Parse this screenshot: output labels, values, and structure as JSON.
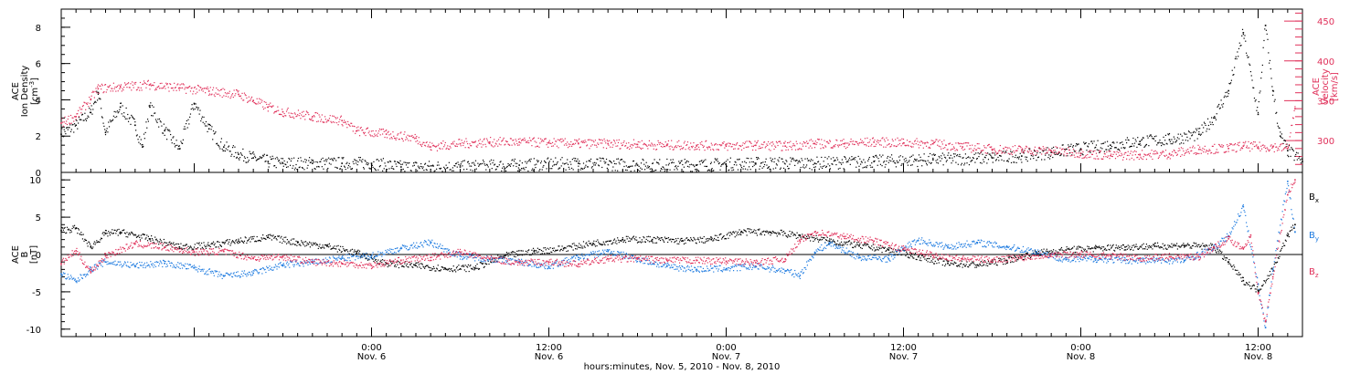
{
  "chart_data": [
    {
      "type": "scatter",
      "panel": "ion-density-velocity",
      "ylabel_lines": [
        "ACE",
        "Ion Density",
        "[cm",
        "-3",
        "]"
      ],
      "ylim": [
        0,
        9
      ],
      "yticks": [
        "0",
        "2",
        "4",
        "6",
        "8"
      ],
      "ytick_values": [
        0,
        2,
        4,
        6,
        8
      ],
      "y2label_lines": [
        "ACE",
        "Velocity",
        "[km/s]"
      ],
      "y2lim": [
        260,
        465
      ],
      "y2ticks": [
        "300",
        "350",
        "400",
        "450"
      ],
      "y2tick_values": [
        300,
        350,
        400,
        450
      ],
      "xlim": [
        -21,
        63
      ],
      "x_unit": "hours from 0:00 Nov. 6, 2010",
      "series": [
        {
          "key": "density",
          "color": "#000000",
          "points": [
            [
              -21,
              2.1
            ],
            [
              -20,
              2.6
            ],
            [
              -19,
              3.3
            ],
            [
              -18.5,
              4.4
            ],
            [
              -18,
              2.2
            ],
            [
              -17,
              3.6
            ],
            [
              -16,
              2.6
            ],
            [
              -15.5,
              1.4
            ],
            [
              -15,
              3.6
            ],
            [
              -14,
              2.3
            ],
            [
              -13,
              1.3
            ],
            [
              -12,
              3.8
            ],
            [
              -11,
              2.4
            ],
            [
              -10,
              1.4
            ],
            [
              -9,
              1.0
            ],
            [
              -8,
              0.8
            ],
            [
              -7,
              0.6
            ],
            [
              -6,
              0.5
            ],
            [
              -4,
              0.5
            ],
            [
              -2,
              0.5
            ],
            [
              0,
              0.5
            ],
            [
              2,
              0.3
            ],
            [
              6,
              0.3
            ],
            [
              10,
              0.4
            ],
            [
              14,
              0.5
            ],
            [
              18,
              0.4
            ],
            [
              22,
              0.4
            ],
            [
              26,
              0.5
            ],
            [
              30,
              0.5
            ],
            [
              34,
              0.6
            ],
            [
              38,
              0.7
            ],
            [
              42,
              0.8
            ],
            [
              44,
              0.9
            ],
            [
              46,
              1.1
            ],
            [
              48,
              1.3
            ],
            [
              50,
              1.5
            ],
            [
              52,
              1.7
            ],
            [
              54,
              1.8
            ],
            [
              56,
              2.1
            ],
            [
              57,
              3.0
            ],
            [
              58,
              4.5
            ],
            [
              59,
              7.7
            ],
            [
              60,
              3.2
            ],
            [
              60.5,
              8.1
            ],
            [
              61,
              4.5
            ],
            [
              61.5,
              2.0
            ],
            [
              62,
              1.2
            ],
            [
              63,
              0.6
            ]
          ]
        },
        {
          "key": "velocity",
          "color": "#e0305a",
          "points": [
            [
              -21,
              322
            ],
            [
              -20,
              330
            ],
            [
              -19,
              352
            ],
            [
              -18.5,
              365
            ],
            [
              -17,
              367
            ],
            [
              -15,
              370
            ],
            [
              -13,
              366
            ],
            [
              -11,
              362
            ],
            [
              -9,
              358
            ],
            [
              -8,
              350
            ],
            [
              -7,
              342
            ],
            [
              -6,
              336
            ],
            [
              -4,
              330
            ],
            [
              -2,
              325
            ],
            [
              -1,
              312
            ],
            [
              1,
              308
            ],
            [
              3,
              303
            ],
            [
              4,
              292
            ],
            [
              6,
              296
            ],
            [
              8,
              298
            ],
            [
              10,
              298
            ],
            [
              12,
              297
            ],
            [
              14,
              296
            ],
            [
              16,
              296
            ],
            [
              18,
              295
            ],
            [
              20,
              294
            ],
            [
              22,
              294
            ],
            [
              24,
              293
            ],
            [
              26,
              294
            ],
            [
              28,
              293
            ],
            [
              30,
              296
            ],
            [
              32,
              296
            ],
            [
              34,
              298
            ],
            [
              36,
              297
            ],
            [
              38,
              296
            ],
            [
              40,
              292
            ],
            [
              42,
              289
            ],
            [
              44,
              288
            ],
            [
              46,
              287
            ],
            [
              48,
              284
            ],
            [
              50,
              281
            ],
            [
              52,
              282
            ],
            [
              54,
              283
            ],
            [
              56,
              289
            ],
            [
              58,
              290
            ],
            [
              59,
              293
            ],
            [
              60,
              292
            ],
            [
              61,
              292
            ],
            [
              62,
              290
            ],
            [
              62.5,
              340
            ]
          ]
        }
      ]
    },
    {
      "type": "scatter",
      "panel": "magnetic-field",
      "ylabel_lines": [
        "ACE",
        "B",
        "[nT]"
      ],
      "ylim": [
        -11,
        11
      ],
      "yticks": [
        "-10",
        "-5",
        "0",
        "5",
        "10"
      ],
      "ytick_values": [
        -10,
        -5,
        0,
        5,
        10
      ],
      "xlim": [
        -21,
        63
      ],
      "x_unit": "hours from 0:00 Nov. 6, 2010",
      "xticks": [
        {
          "time": "0:00",
          "date": "Nov. 6",
          "hours": 0
        },
        {
          "time": "12:00",
          "date": "Nov. 6",
          "hours": 12
        },
        {
          "time": "0:00",
          "date": "Nov. 7",
          "hours": 24
        },
        {
          "time": "12:00",
          "date": "Nov. 7",
          "hours": 36
        },
        {
          "time": "0:00",
          "date": "Nov. 8",
          "hours": 48
        },
        {
          "time": "12:00",
          "date": "Nov. 8",
          "hours": 60
        }
      ],
      "xlabel": "hours:minutes, Nov. 5, 2010 - Nov. 8, 2010",
      "series": [
        {
          "key": "bx",
          "name": "B",
          "subscript": "x",
          "color": "#000000",
          "points": [
            [
              -21,
              3.2
            ],
            [
              -20,
              3.5
            ],
            [
              -19,
              1.0
            ],
            [
              -18,
              2.8
            ],
            [
              -17,
              3.0
            ],
            [
              -15,
              2.1
            ],
            [
              -13,
              1.0
            ],
            [
              -11,
              1.2
            ],
            [
              -9,
              1.8
            ],
            [
              -7,
              2.3
            ],
            [
              -5,
              1.6
            ],
            [
              -3,
              1.1
            ],
            [
              -1,
              0.2
            ],
            [
              1,
              -1.2
            ],
            [
              3,
              -1.5
            ],
            [
              5,
              -1.9
            ],
            [
              7,
              -1.8
            ],
            [
              9,
              -0.2
            ],
            [
              11,
              0.4
            ],
            [
              13,
              0.8
            ],
            [
              15,
              1.5
            ],
            [
              17,
              2.0
            ],
            [
              19,
              2.0
            ],
            [
              21,
              1.8
            ],
            [
              23,
              2.0
            ],
            [
              25,
              3.0
            ],
            [
              27,
              3.0
            ],
            [
              29,
              2.5
            ],
            [
              31,
              1.8
            ],
            [
              33,
              1.2
            ],
            [
              35,
              0.6
            ],
            [
              37,
              -0.3
            ],
            [
              39,
              -1.2
            ],
            [
              41,
              -1.4
            ],
            [
              43,
              -0.8
            ],
            [
              45,
              0.2
            ],
            [
              47,
              0.6
            ],
            [
              49,
              0.8
            ],
            [
              51,
              1.0
            ],
            [
              53,
              1.1
            ],
            [
              55,
              1.2
            ],
            [
              57,
              1.0
            ],
            [
              58,
              -1.0
            ],
            [
              59,
              -3.5
            ],
            [
              60,
              -4.8
            ],
            [
              61,
              -2.0
            ],
            [
              62,
              2.5
            ],
            [
              62.5,
              4.0
            ]
          ]
        },
        {
          "key": "by",
          "name": "B",
          "subscript": "y",
          "color": "#1e7be0",
          "points": [
            [
              -21,
              -2.6
            ],
            [
              -20,
              -3.6
            ],
            [
              -19,
              -2.0
            ],
            [
              -18,
              -1.0
            ],
            [
              -16,
              -1.5
            ],
            [
              -14,
              -1.2
            ],
            [
              -12,
              -1.8
            ],
            [
              -10,
              -2.9
            ],
            [
              -8,
              -2.5
            ],
            [
              -6,
              -1.4
            ],
            [
              -4,
              -1.1
            ],
            [
              -2,
              -0.5
            ],
            [
              0,
              -0.2
            ],
            [
              2,
              0.8
            ],
            [
              4,
              1.6
            ],
            [
              6,
              -0.2
            ],
            [
              8,
              -0.6
            ],
            [
              10,
              -1.0
            ],
            [
              12,
              -1.6
            ],
            [
              14,
              -0.4
            ],
            [
              16,
              0.4
            ],
            [
              18,
              -0.6
            ],
            [
              20,
              -1.6
            ],
            [
              22,
              -2.0
            ],
            [
              24,
              -1.9
            ],
            [
              26,
              -1.6
            ],
            [
              28,
              -2.2
            ],
            [
              29,
              -2.8
            ],
            [
              30,
              0.3
            ],
            [
              31,
              1.5
            ],
            [
              33,
              -0.4
            ],
            [
              35,
              -0.6
            ],
            [
              36,
              0.8
            ],
            [
              37,
              1.9
            ],
            [
              39,
              1.0
            ],
            [
              41,
              1.6
            ],
            [
              43,
              1.0
            ],
            [
              45,
              0.4
            ],
            [
              47,
              -0.7
            ],
            [
              49,
              -0.6
            ],
            [
              51,
              -0.8
            ],
            [
              53,
              -0.8
            ],
            [
              55,
              -0.8
            ],
            [
              57,
              0.8
            ],
            [
              58,
              2.5
            ],
            [
              59,
              6.4
            ],
            [
              60,
              -4.0
            ],
            [
              60.5,
              -9.8
            ],
            [
              61,
              -2.0
            ],
            [
              62,
              9.8
            ],
            [
              62.5,
              3.0
            ]
          ]
        },
        {
          "key": "bz",
          "name": "B",
          "subscript": "z",
          "color": "#e0305a",
          "points": [
            [
              -21,
              -1.2
            ],
            [
              -20,
              0.5
            ],
            [
              -19,
              -2.3
            ],
            [
              -18,
              -0.2
            ],
            [
              -16,
              1.4
            ],
            [
              -14,
              1.0
            ],
            [
              -12,
              0.3
            ],
            [
              -10,
              0.4
            ],
            [
              -8,
              -0.5
            ],
            [
              -6,
              -0.3
            ],
            [
              -4,
              -1.0
            ],
            [
              -2,
              -1.2
            ],
            [
              0,
              -1.5
            ],
            [
              2,
              -0.8
            ],
            [
              4,
              -0.4
            ],
            [
              6,
              0.3
            ],
            [
              8,
              -0.6
            ],
            [
              10,
              -1.1
            ],
            [
              12,
              -1.0
            ],
            [
              14,
              -1.3
            ],
            [
              16,
              -0.6
            ],
            [
              18,
              -0.6
            ],
            [
              20,
              -0.8
            ],
            [
              22,
              -0.8
            ],
            [
              24,
              -0.9
            ],
            [
              26,
              -1.1
            ],
            [
              28,
              -0.6
            ],
            [
              29,
              1.8
            ],
            [
              30,
              3.0
            ],
            [
              32,
              2.4
            ],
            [
              34,
              1.8
            ],
            [
              36,
              0.7
            ],
            [
              38,
              -0.1
            ],
            [
              40,
              -0.6
            ],
            [
              42,
              -0.7
            ],
            [
              44,
              -0.4
            ],
            [
              46,
              0.0
            ],
            [
              48,
              0.0
            ],
            [
              50,
              -0.2
            ],
            [
              52,
              -0.5
            ],
            [
              54,
              -0.3
            ],
            [
              56,
              -0.3
            ],
            [
              57,
              0.9
            ],
            [
              58,
              2.1
            ],
            [
              59,
              0.8
            ],
            [
              59.5,
              2.6
            ],
            [
              60,
              -5.1
            ],
            [
              60.5,
              -9.0
            ],
            [
              61,
              -3.0
            ],
            [
              62,
              8.0
            ],
            [
              62.5,
              10.0
            ]
          ]
        }
      ]
    }
  ]
}
